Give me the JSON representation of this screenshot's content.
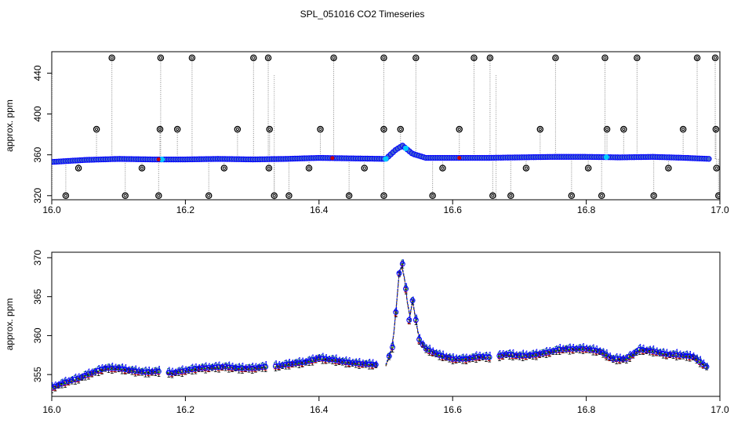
{
  "page": {
    "title": "SPL_051016  CO2 Timeseries"
  },
  "chart_data": [
    {
      "type": "scatter",
      "panel": "top",
      "title": "SPL_051016  CO2 Timeseries",
      "xlabel": "",
      "ylabel": "approx. ppm",
      "xlim": [
        16.0,
        17.0
      ],
      "ylim": [
        316,
        461
      ],
      "xticks": [
        "16.0",
        "16.2",
        "16.4",
        "16.6",
        "16.8",
        "17.0"
      ],
      "yticks": [
        "320",
        "360",
        "400",
        "440"
      ],
      "grid": false,
      "legend": "none",
      "series": [
        {
          "style": "dense-points",
          "colors": {
            "outline": "#0000ff",
            "fill": "#4466cc",
            "accent_red": "#cc0000",
            "accent_cyan": "#00ccff"
          },
          "x": [
            16.0,
            16.05,
            16.1,
            16.15,
            16.2,
            16.25,
            16.3,
            16.35,
            16.4,
            16.45,
            16.5,
            16.515,
            16.525,
            16.54,
            16.56,
            16.6,
            16.65,
            16.7,
            16.75,
            16.8,
            16.85,
            16.9,
            16.95,
            16.985
          ],
          "y": [
            353,
            355,
            356,
            355.5,
            355.5,
            356,
            355.5,
            356,
            357,
            356.5,
            356,
            365,
            369,
            361,
            357,
            357,
            357,
            357.5,
            358,
            358,
            357.5,
            358,
            357,
            356
          ]
        },
        {
          "style": "outlier-circles",
          "color": "#000000",
          "x": [
            16.09,
            16.163,
            16.21,
            16.302,
            16.324,
            16.422,
            16.497,
            16.545,
            16.632,
            16.656,
            16.754,
            16.828,
            16.876,
            16.966,
            16.993,
            16.067,
            16.162,
            16.188,
            16.278,
            16.326,
            16.402,
            16.497,
            16.522,
            16.61,
            16.731,
            16.831,
            16.856,
            16.945,
            16.994,
            16.021,
            16.11,
            16.16,
            16.235,
            16.333,
            16.355,
            16.445,
            16.497,
            16.57,
            16.66,
            16.687,
            16.778,
            16.823,
            16.901,
            16.998,
            16.04,
            16.135,
            16.258,
            16.325,
            16.385,
            16.468,
            16.585,
            16.71,
            16.803,
            16.923,
            16.995
          ],
          "y": [
            455,
            455,
            455,
            455,
            455,
            455,
            455,
            455,
            455,
            455,
            455,
            455,
            455,
            455,
            455,
            385,
            385,
            385,
            385,
            385,
            385,
            385,
            385,
            385,
            385,
            385,
            385,
            385,
            385,
            320,
            320,
            320,
            320,
            320,
            320,
            320,
            320,
            320,
            320,
            320,
            320,
            320,
            320,
            320,
            347,
            347,
            347,
            347,
            347,
            347,
            347,
            347,
            347,
            347,
            347
          ]
        }
      ]
    },
    {
      "type": "line",
      "panel": "bottom",
      "title": "",
      "xlabel": "",
      "ylabel": "approx. ppm",
      "xlim": [
        16.0,
        17.0
      ],
      "ylim": [
        352.2,
        370.7
      ],
      "xticks": [
        "16.0",
        "16.2",
        "16.4",
        "16.6",
        "16.8",
        "17.0"
      ],
      "yticks": [
        "355",
        "360",
        "365",
        "370"
      ],
      "grid": false,
      "legend": "none",
      "series": [
        {
          "style": "numbered-points",
          "colors": [
            "#000000",
            "#cc0000",
            "#00aa00",
            "#0000ff"
          ],
          "x": [
            16.0,
            16.02,
            16.04,
            16.06,
            16.08,
            16.1,
            16.12,
            16.14,
            16.16,
            16.18,
            16.2,
            16.22,
            16.24,
            16.26,
            16.28,
            16.3,
            16.32,
            16.34,
            16.36,
            16.38,
            16.4,
            16.42,
            16.44,
            16.46,
            16.48,
            16.5,
            16.51,
            16.515,
            16.52,
            16.525,
            16.53,
            16.535,
            16.54,
            16.545,
            16.55,
            16.56,
            16.58,
            16.6,
            16.62,
            16.64,
            16.66,
            16.68,
            16.7,
            16.72,
            16.74,
            16.76,
            16.78,
            16.8,
            16.82,
            16.84,
            16.86,
            16.88,
            16.9,
            16.92,
            16.94,
            16.96,
            16.98
          ],
          "y": [
            353.3,
            354.0,
            354.5,
            355.2,
            355.8,
            355.8,
            355.5,
            355.3,
            355.4,
            355.2,
            355.5,
            355.8,
            355.9,
            356.0,
            355.8,
            355.8,
            356.0,
            356.1,
            356.4,
            356.6,
            357.1,
            356.9,
            356.6,
            356.4,
            356.3,
            356.2,
            358.5,
            363,
            368,
            369.2,
            366,
            362,
            364.5,
            362,
            359.5,
            358.3,
            357.5,
            357.0,
            357.0,
            357.3,
            357.2,
            357.6,
            357.4,
            357.5,
            357.8,
            358.2,
            358.3,
            358.3,
            358.0,
            357.0,
            357.0,
            358.2,
            358.0,
            357.6,
            357.5,
            357.3,
            356.0
          ]
        }
      ]
    }
  ]
}
